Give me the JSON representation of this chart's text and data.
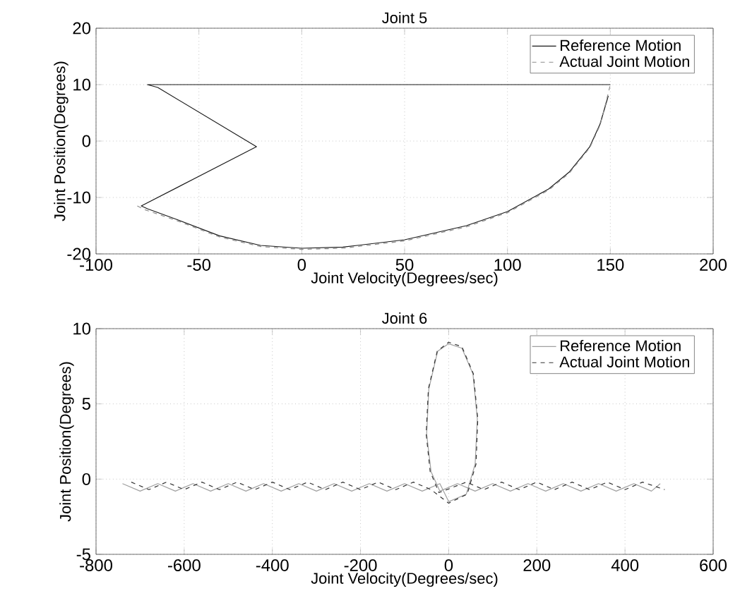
{
  "chart_data": [
    {
      "type": "line",
      "title": "Joint 5",
      "xlabel": "Joint Velocity(Degrees/sec)",
      "ylabel": "Joint Position(Degrees)",
      "xlim": [
        -100,
        200
      ],
      "xticks": [
        -100,
        -50,
        0,
        50,
        100,
        150,
        200
      ],
      "ylim": [
        -20,
        20
      ],
      "yticks": [
        -20,
        -10,
        0,
        10,
        20
      ],
      "grid": true,
      "legend": "top right",
      "series": [
        {
          "name": "Reference Motion",
          "color": "#1a1a1a",
          "line_style": "solid",
          "x": [
            150,
            -75,
            -70,
            -22,
            -78,
            -75,
            -60,
            -40,
            -20,
            0,
            20,
            50,
            80,
            100,
            120,
            130,
            140,
            145,
            149
          ],
          "values": [
            10,
            10,
            9.5,
            -1,
            -11.5,
            -12,
            -14,
            -16.8,
            -18.5,
            -19,
            -18.8,
            -17.5,
            -15,
            -12.5,
            -8.5,
            -5.5,
            -1,
            3,
            8
          ]
        },
        {
          "name": "Actual Joint Motion",
          "color": "#8c8c8c",
          "line_style": "dashed",
          "x": [
            40,
            150,
            148,
            145,
            140,
            130,
            120,
            100,
            80,
            50,
            20,
            0,
            -20,
            -40,
            -60,
            -76,
            -80
          ],
          "values": [
            10,
            10,
            7,
            2.8,
            -1.2,
            -5.7,
            -8.7,
            -12.7,
            -15.2,
            -17.7,
            -19,
            -19.2,
            -18.7,
            -17,
            -14.2,
            -12.2,
            -11.5
          ]
        }
      ]
    },
    {
      "type": "line",
      "title": "Joint 6",
      "xlabel": "Joint Velocity(Degrees/sec)",
      "ylabel": "Joint Position(Degrees)",
      "xlim": [
        -800,
        600
      ],
      "xticks": [
        -800,
        -600,
        -400,
        -200,
        0,
        200,
        400,
        600
      ],
      "ylim": [
        -5,
        10
      ],
      "yticks": [
        -5,
        0,
        5,
        10
      ],
      "grid": true,
      "legend": "top right",
      "series": [
        {
          "name": "Reference Motion",
          "color": "#a0a0a0",
          "line_style": "solid",
          "x": [
            -740,
            -700,
            -660,
            -620,
            -580,
            -540,
            -500,
            -460,
            -420,
            -380,
            -340,
            -300,
            -260,
            -220,
            -180,
            -140,
            -100,
            -60,
            -20,
            0,
            40,
            60,
            65,
            55,
            30,
            0,
            -25,
            -45,
            -50,
            -40,
            -20,
            20,
            60,
            100,
            140,
            180,
            220,
            260,
            300,
            340,
            380,
            420,
            460,
            480
          ],
          "values": [
            -0.3,
            -0.8,
            -0.3,
            -0.8,
            -0.3,
            -0.8,
            -0.3,
            -0.8,
            -0.3,
            -0.8,
            -0.3,
            -0.8,
            -0.3,
            -0.8,
            -0.3,
            -0.8,
            -0.3,
            -0.8,
            -0.3,
            -1.5,
            -1,
            1,
            4,
            7,
            8.7,
            9,
            8.5,
            6,
            3,
            0.5,
            -0.8,
            -0.3,
            -0.8,
            -0.3,
            -0.8,
            -0.3,
            -0.8,
            -0.3,
            -0.8,
            -0.3,
            -0.8,
            -0.3,
            -0.8,
            -0.3
          ]
        },
        {
          "name": "Actual Joint Motion",
          "color": "#333333",
          "line_style": "dashed",
          "x": [
            -720,
            -680,
            -640,
            -600,
            -560,
            -520,
            -480,
            -440,
            -400,
            -360,
            -320,
            -280,
            -240,
            -200,
            -160,
            -120,
            -80,
            -40,
            0,
            42,
            62,
            66,
            56,
            30,
            0,
            -26,
            -46,
            -51,
            -42,
            -22,
            40,
            80,
            120,
            160,
            200,
            240,
            280,
            320,
            360,
            400,
            440,
            490
          ],
          "values": [
            -0.2,
            -0.7,
            -0.2,
            -0.7,
            -0.2,
            -0.7,
            -0.2,
            -0.7,
            -0.2,
            -0.7,
            -0.2,
            -0.7,
            -0.2,
            -0.7,
            -0.2,
            -0.7,
            -0.2,
            -0.7,
            -1.6,
            -1,
            1,
            4,
            7,
            8.8,
            9.1,
            8.5,
            6,
            3,
            0.5,
            -0.9,
            -0.2,
            -0.7,
            -0.2,
            -0.7,
            -0.2,
            -0.7,
            -0.2,
            -0.7,
            -0.2,
            -0.7,
            -0.2,
            -0.7
          ]
        }
      ]
    }
  ]
}
